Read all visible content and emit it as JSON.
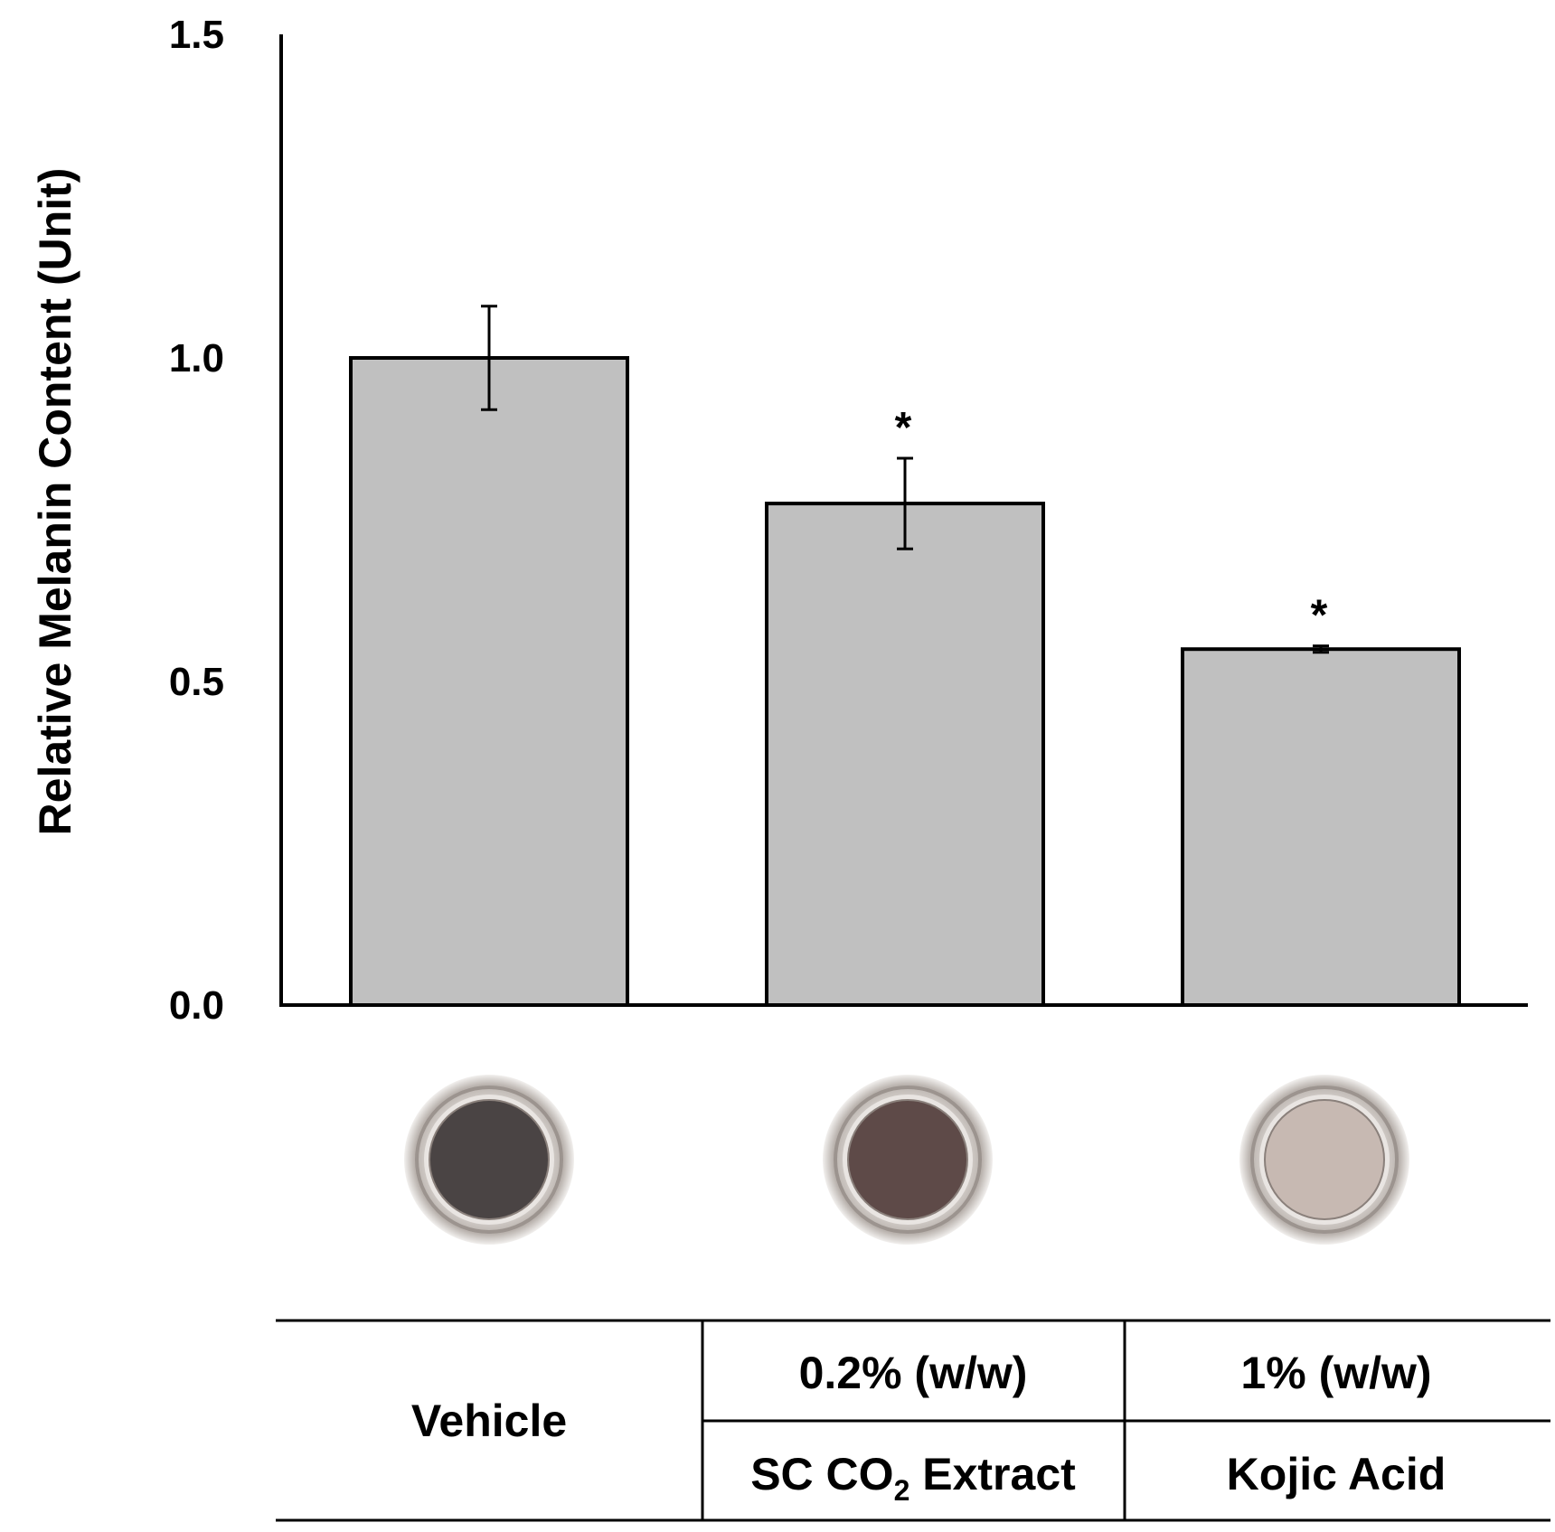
{
  "chart_data": {
    "type": "bar",
    "title": "",
    "xlabel": "",
    "ylabel": "Relative Melanin Content (Unit)",
    "ylim": [
      0,
      1.5
    ],
    "yticks": [
      "0.0",
      "0.5",
      "1.0",
      "1.5"
    ],
    "ytick_values": [
      0,
      0.5,
      1.0,
      1.5
    ],
    "grid": false,
    "categories": [
      "Vehicle",
      "SC CO2 Extract",
      "Kojic Acid"
    ],
    "values": [
      1.0,
      0.775,
      0.55
    ],
    "error": [
      0.08,
      0.07,
      0.005
    ],
    "significance": [
      "",
      "*",
      "*"
    ],
    "bar_color": "#c0c0c0",
    "sample_colors": [
      "#4a4444",
      "#5e4a48",
      "#c7b9b2"
    ]
  },
  "table": {
    "vehicle": "Vehicle",
    "extract_conc": "0.2% (w/w)",
    "extract_name_prefix": "SC CO",
    "extract_name_sub": "2",
    "extract_name_suffix": " Extract",
    "kojic_conc": "1% (w/w)",
    "kojic_name": "Kojic Acid"
  }
}
